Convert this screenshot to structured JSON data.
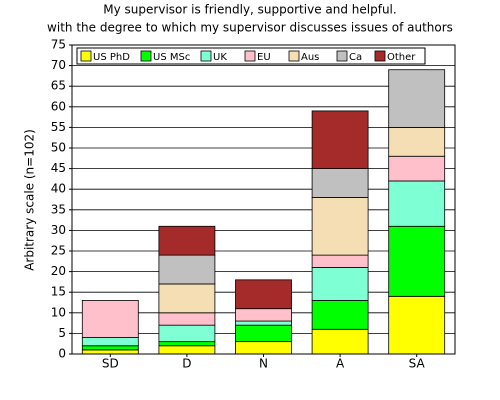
{
  "chart_data": {
    "type": "stacked_bar",
    "title": [
      "My supervisor is friendly, supportive and helpful.",
      "with the degree to which my supervisor discusses issues of authors"
    ],
    "ylabel": "Arbitrary scale (n=102)",
    "categories": [
      "SD",
      "D",
      "N",
      "A",
      "SA"
    ],
    "series": [
      {
        "name": "US PhD",
        "color": "#ffff00",
        "values": [
          1,
          2,
          3,
          6,
          14
        ]
      },
      {
        "name": "US MSc",
        "color": "#00ff00",
        "values": [
          1,
          1,
          4,
          7,
          17
        ]
      },
      {
        "name": "UK",
        "color": "#7fffd4",
        "values": [
          2,
          4,
          1,
          8,
          11
        ]
      },
      {
        "name": "EU",
        "color": "#ffc0cb",
        "values": [
          9,
          3,
          3,
          3,
          6
        ]
      },
      {
        "name": "Aus",
        "color": "#f5deb3",
        "values": [
          0,
          7,
          0,
          14,
          7
        ]
      },
      {
        "name": "Ca",
        "color": "#c0c0c0",
        "values": [
          0,
          7,
          0,
          7,
          14
        ]
      },
      {
        "name": "Other",
        "color": "#a52a2a",
        "values": [
          0,
          7,
          7,
          14,
          0
        ]
      }
    ],
    "ylim": [
      0,
      75
    ],
    "yticks": [
      0,
      5,
      10,
      15,
      20,
      25,
      30,
      35,
      40,
      45,
      50,
      55,
      60,
      65,
      70,
      75
    ],
    "grid": true,
    "legend": "top-left"
  }
}
